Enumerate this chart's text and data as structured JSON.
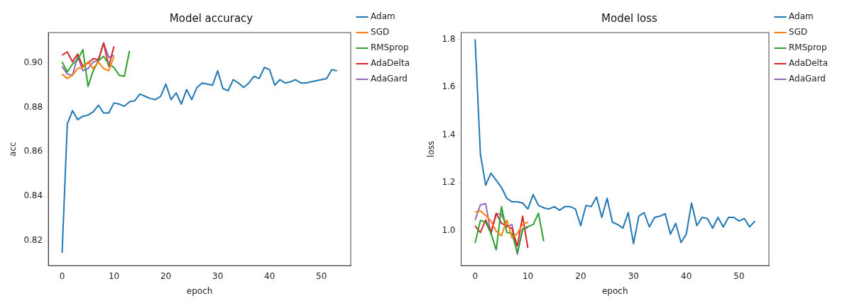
{
  "chart_data": [
    {
      "type": "line",
      "title": "Model accuracy",
      "xlabel": "epoch",
      "ylabel": "acc",
      "legend": "top right",
      "grid": false,
      "marker": "none",
      "line_style": "solid",
      "x": [
        0,
        1,
        2,
        3,
        4,
        5,
        6,
        7,
        8,
        9,
        10,
        11,
        12,
        13,
        14,
        15,
        16,
        17,
        18,
        19,
        20,
        21,
        22,
        23,
        24,
        25,
        26,
        27,
        28,
        29,
        30,
        31,
        32,
        33,
        34,
        35,
        36,
        37,
        38,
        39,
        40,
        41,
        42,
        43,
        44,
        45,
        46,
        47,
        48,
        49,
        50,
        51,
        52,
        53
      ],
      "xlim": [
        -2.65,
        55.65
      ],
      "xticks": [
        0,
        10,
        20,
        30,
        40,
        50
      ],
      "ylim": [
        0.8087,
        0.9137
      ],
      "yticks": [
        {
          "value": 0.82,
          "label": "0.82"
        },
        {
          "value": 0.84,
          "label": "0.84"
        },
        {
          "value": 0.86,
          "label": "0.86"
        },
        {
          "value": 0.88,
          "label": "0.88"
        },
        {
          "value": 0.9,
          "label": "0.90"
        }
      ],
      "series": [
        {
          "name": "Adam",
          "color": "#1f77b4",
          "values": [
            0.8145,
            0.8725,
            0.8785,
            0.8745,
            0.876,
            0.8765,
            0.878,
            0.881,
            0.8775,
            0.8775,
            0.882,
            0.8815,
            0.8805,
            0.8825,
            0.883,
            0.886,
            0.885,
            0.884,
            0.8835,
            0.885,
            0.8905,
            0.8835,
            0.8865,
            0.8815,
            0.888,
            0.8835,
            0.889,
            0.891,
            0.8905,
            0.89,
            0.8965,
            0.8885,
            0.8875,
            0.8925,
            0.891,
            0.889,
            0.891,
            0.894,
            0.893,
            0.898,
            0.897,
            0.89,
            0.8925,
            0.891,
            0.8915,
            0.8925,
            0.891,
            0.891,
            0.8915,
            0.892,
            0.8925,
            0.893,
            0.897,
            0.8965
          ]
        },
        {
          "name": "SGD",
          "color": "#ff7f0e",
          "x": [
            0,
            1,
            2,
            3,
            4,
            5,
            6,
            7,
            8,
            9,
            10
          ],
          "values": [
            0.895,
            0.893,
            0.8945,
            0.8975,
            0.898,
            0.9005,
            0.8975,
            0.9005,
            0.8975,
            0.8965,
            0.903
          ]
        },
        {
          "name": "RMSprop",
          "color": "#2ca02c",
          "x": [
            0,
            1,
            2,
            3,
            4,
            5,
            6,
            7,
            8,
            9,
            10,
            11,
            12,
            13
          ],
          "values": [
            0.9005,
            0.896,
            0.8995,
            0.9015,
            0.906,
            0.8895,
            0.8965,
            0.901,
            0.903,
            0.8995,
            0.898,
            0.8945,
            0.894,
            0.9055
          ]
        },
        {
          "name": "AdaDelta",
          "color": "#d62728",
          "x": [
            0,
            1,
            2,
            3,
            4,
            5,
            6,
            7,
            8,
            9,
            10
          ],
          "values": [
            0.9035,
            0.905,
            0.9005,
            0.904,
            0.8985,
            0.9,
            0.902,
            0.9015,
            0.909,
            0.8985,
            0.9075
          ]
        },
        {
          "name": "AdaGard",
          "color": "#9467bd",
          "x": [
            0,
            1,
            2,
            3,
            4,
            5,
            6,
            7,
            8,
            9,
            10
          ],
          "values": [
            0.8985,
            0.895,
            0.8945,
            0.903,
            0.8965,
            0.8975,
            0.9005,
            0.901,
            0.909,
            0.9025,
            0.9035
          ]
        }
      ]
    },
    {
      "type": "line",
      "title": "Model loss",
      "xlabel": "epoch",
      "ylabel": "loss",
      "legend": "top right",
      "grid": false,
      "marker": "none",
      "line_style": "solid",
      "x": [
        0,
        1,
        2,
        3,
        4,
        5,
        6,
        7,
        8,
        9,
        10,
        11,
        12,
        13,
        14,
        15,
        16,
        17,
        18,
        19,
        20,
        21,
        22,
        23,
        24,
        25,
        26,
        27,
        28,
        29,
        30,
        31,
        32,
        33,
        34,
        35,
        36,
        37,
        38,
        39,
        40,
        41,
        42,
        43,
        44,
        45,
        46,
        47,
        48,
        49,
        50,
        51,
        52,
        53
      ],
      "xlim": [
        -2.65,
        55.65
      ],
      "xticks": [
        0,
        10,
        20,
        30,
        40,
        50
      ],
      "ylim": [
        0.853,
        1.828
      ],
      "yticks": [
        {
          "value": 1.0,
          "label": "1.0"
        },
        {
          "value": 1.2,
          "label": "1.2"
        },
        {
          "value": 1.4,
          "label": "1.4"
        },
        {
          "value": 1.6,
          "label": "1.6"
        },
        {
          "value": 1.8,
          "label": "1.8"
        }
      ],
      "series": [
        {
          "name": "Adam",
          "color": "#1f77b4",
          "values": [
            1.8,
            1.32,
            1.19,
            1.24,
            1.21,
            1.18,
            1.135,
            1.12,
            1.12,
            1.115,
            1.09,
            1.15,
            1.105,
            1.095,
            1.09,
            1.1,
            1.085,
            1.1,
            1.1,
            1.09,
            1.02,
            1.105,
            1.1,
            1.14,
            1.055,
            1.135,
            1.035,
            1.025,
            1.01,
            1.075,
            0.945,
            1.06,
            1.075,
            1.015,
            1.055,
            1.06,
            1.07,
            0.985,
            1.03,
            0.95,
            0.985,
            1.115,
            1.02,
            1.055,
            1.05,
            1.01,
            1.055,
            1.015,
            1.055,
            1.055,
            1.04,
            1.05,
            1.015,
            1.04
          ]
        },
        {
          "name": "SGD",
          "color": "#ff7f0e",
          "x": [
            0,
            1,
            2,
            3,
            4,
            5,
            6,
            7,
            8,
            9,
            10
          ],
          "values": [
            1.077,
            1.082,
            1.063,
            1.04,
            0.997,
            0.978,
            1.044,
            0.969,
            0.988,
            1.025,
            1.035
          ]
        },
        {
          "name": "RMSprop",
          "color": "#2ca02c",
          "x": [
            0,
            1,
            2,
            3,
            4,
            5,
            6,
            7,
            8,
            9,
            10,
            11,
            12,
            13
          ],
          "values": [
            0.948,
            1.042,
            1.035,
            0.988,
            0.919,
            1.1,
            0.992,
            0.988,
            0.908,
            1.004,
            1.016,
            1.025,
            1.072,
            0.955
          ]
        },
        {
          "name": "AdaDelta",
          "color": "#d62728",
          "x": [
            0,
            1,
            2,
            3,
            4,
            5,
            6,
            7,
            8,
            9,
            10
          ],
          "values": [
            1.019,
            0.992,
            1.044,
            0.992,
            1.072,
            1.03,
            1.021,
            1.007,
            0.936,
            1.06,
            0.927
          ]
        },
        {
          "name": "AdaGard",
          "color": "#9467bd",
          "x": [
            0,
            1,
            2,
            3,
            4,
            5,
            6,
            7,
            8,
            9,
            10
          ],
          "values": [
            1.044,
            1.107,
            1.113,
            0.985,
            1.069,
            1.069,
            1.016,
            1.025,
            0.9,
            1.007,
            1.011
          ]
        }
      ]
    }
  ]
}
